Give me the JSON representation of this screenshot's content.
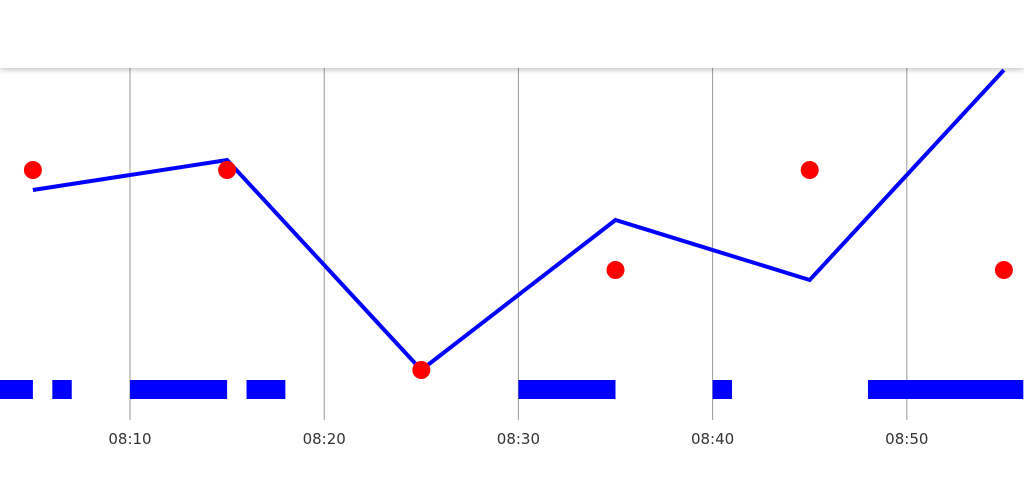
{
  "header": {
    "title": ""
  },
  "chart_data": {
    "type": "line",
    "title": "",
    "xlabel": "",
    "ylabel": "",
    "x_ticks": [
      "08:10",
      "08:20",
      "08:30",
      "08:40",
      "08:50"
    ],
    "series": [
      {
        "kind": "line",
        "color": "#0000ff",
        "points": [
          {
            "t": "08:05",
            "v": 1.8
          },
          {
            "t": "08:15",
            "v": 2.1
          },
          {
            "t": "08:25",
            "v": 0.0
          },
          {
            "t": "08:35",
            "v": 1.5
          },
          {
            "t": "08:45",
            "v": 0.9
          },
          {
            "t": "08:55",
            "v": 3.0
          }
        ]
      },
      {
        "kind": "scatter",
        "color": "#ff0000",
        "points": [
          {
            "t": "08:05",
            "v": 2.0
          },
          {
            "t": "08:15",
            "v": 2.0
          },
          {
            "t": "08:25",
            "v": 0.0
          },
          {
            "t": "08:35",
            "v": 1.0
          },
          {
            "t": "08:45",
            "v": 2.0
          },
          {
            "t": "08:55",
            "v": 1.0
          }
        ]
      },
      {
        "kind": "interval",
        "color": "#0000ff",
        "intervals": [
          [
            "08:03",
            "08:05"
          ],
          [
            "08:06",
            "08:07"
          ],
          [
            "08:10",
            "08:15"
          ],
          [
            "08:16",
            "08:18"
          ],
          [
            "08:30",
            "08:35"
          ],
          [
            "08:40",
            "08:41"
          ],
          [
            "08:48",
            "08:56"
          ]
        ]
      }
    ],
    "xlim": [
      "08:03",
      "08:56"
    ],
    "ylim": [
      0,
      3
    ],
    "grid": "vertical"
  }
}
